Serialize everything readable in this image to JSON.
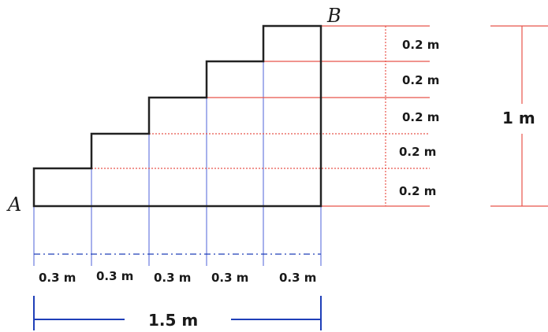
{
  "points": {
    "a": "A",
    "b": "B"
  },
  "rise_labels": [
    "0.2 m",
    "0.2 m",
    "0.2 m",
    "0.2 m",
    "0.2 m"
  ],
  "run_labels": [
    "0.3 m",
    "0.3 m",
    "0.3 m",
    "0.3 m",
    "0.3 m"
  ],
  "total_height": "1 m",
  "total_width": "1.5 m",
  "colors": {
    "stair": "#222222",
    "height_lines": "#e8534a",
    "width_lines": "#1f3fb8"
  }
}
